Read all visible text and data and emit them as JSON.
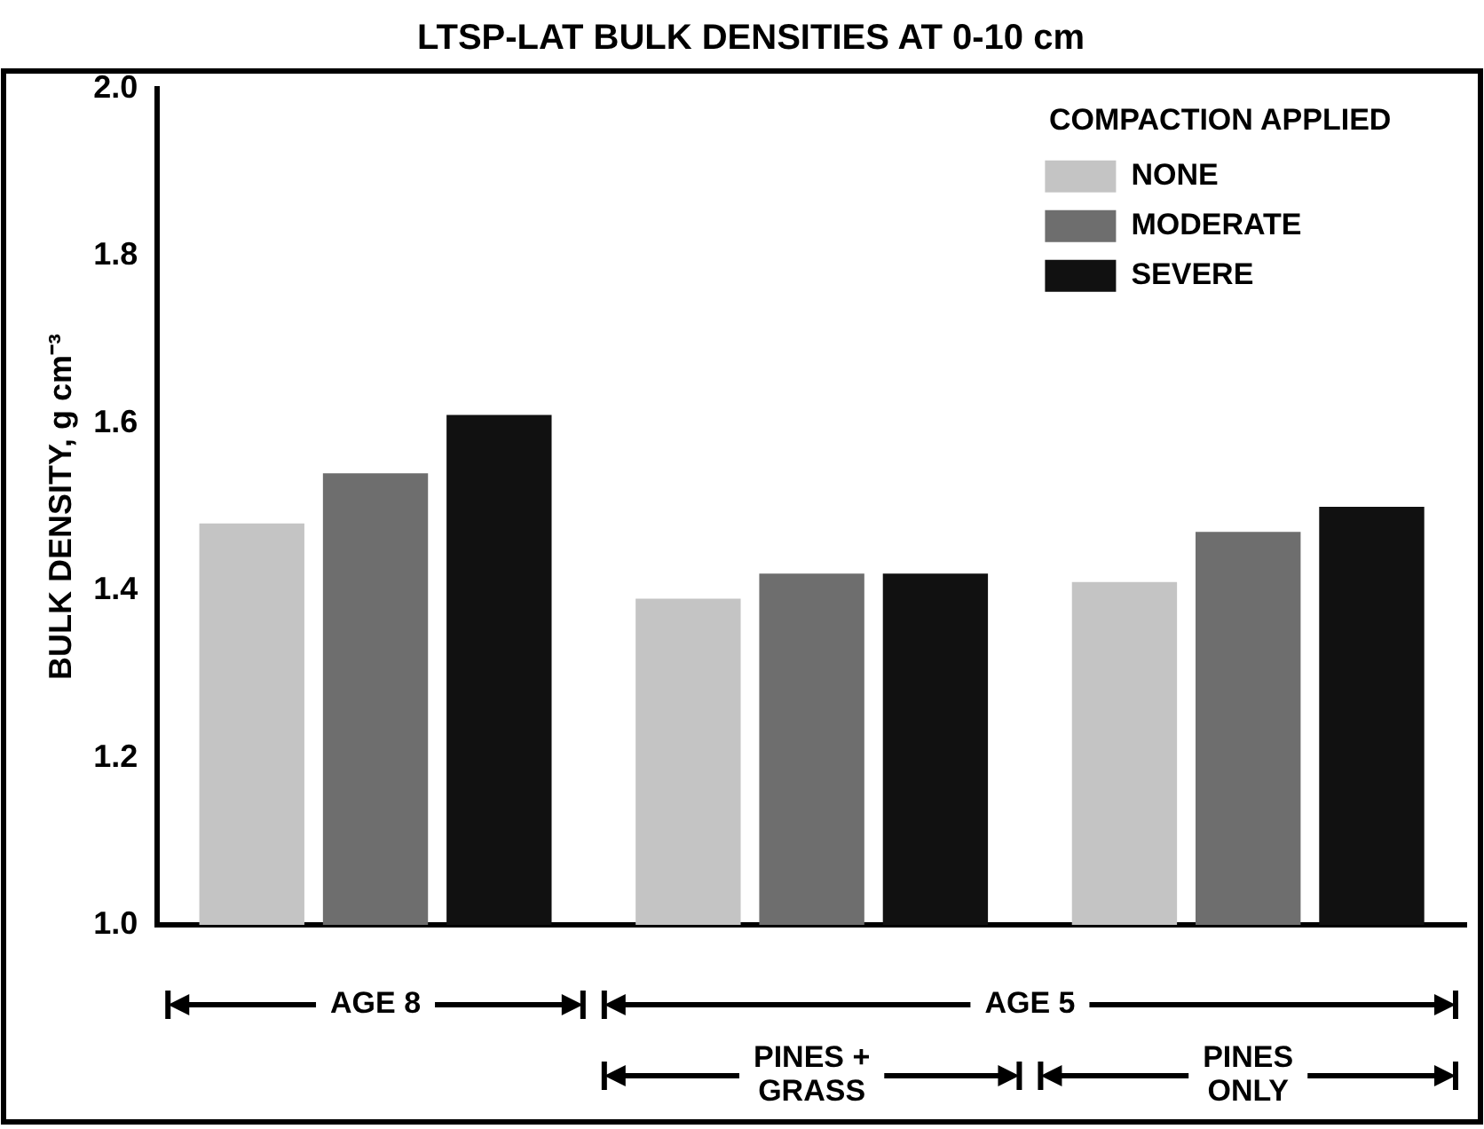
{
  "chart_data": {
    "type": "bar",
    "title": "LTSP-LAT BULK DENSITIES AT 0-10 cm",
    "ylabel": "BULK DENSITY, g cm⁻³",
    "legend_title": "COMPACTION APPLIED",
    "categories": [
      "AGE 8",
      "PINES + GRASS",
      "PINES ONLY"
    ],
    "series": [
      {
        "name": "NONE",
        "color": "#c4c4c4",
        "values": [
          1.48,
          1.39,
          1.41
        ]
      },
      {
        "name": "MODERATE",
        "color": "#6e6e6e",
        "values": [
          1.54,
          1.42,
          1.47
        ]
      },
      {
        "name": "SEVERE",
        "color": "#111111",
        "values": [
          1.61,
          1.42,
          1.5
        ]
      }
    ],
    "ylim": [
      1.0,
      2.0
    ],
    "yticks": [
      {
        "value": 1.0,
        "label": "1.0"
      },
      {
        "value": 1.2,
        "label": "1.2"
      },
      {
        "value": 1.4,
        "label": "1.4"
      },
      {
        "value": 1.6,
        "label": "1.6"
      },
      {
        "value": 1.8,
        "label": "1.8"
      },
      {
        "value": 2.0,
        "label": "2.0"
      }
    ],
    "annotations": [
      "AGE 5"
    ],
    "grid": false,
    "legend": "top right"
  }
}
